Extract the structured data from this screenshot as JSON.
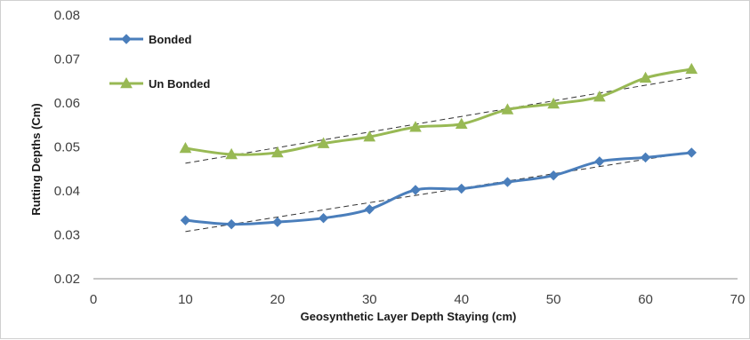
{
  "chart_data": {
    "type": "line",
    "title": "",
    "xlabel": "Geosynthetic Layer Depth  Staying (cm)",
    "ylabel": "Rutting Depths (Cm)",
    "xlim": [
      0,
      70
    ],
    "ylim": [
      0.02,
      0.08
    ],
    "x_ticks": [
      "0",
      "10",
      "20",
      "30",
      "40",
      "50",
      "60",
      "70"
    ],
    "y_ticks": [
      "0.02",
      "0.03",
      "0.04",
      "0.05",
      "0.06",
      "0.07",
      "0.08"
    ],
    "grid": false,
    "legend_position": "top-left",
    "trendlines": "dashed linear fit per series",
    "x": [
      10,
      15,
      20,
      25,
      30,
      35,
      40,
      45,
      50,
      55,
      60,
      65
    ],
    "series": [
      {
        "name": "Bonded",
        "color": "#4a7ebb",
        "marker": "diamond",
        "values": [
          0.0333,
          0.0324,
          0.0329,
          0.0338,
          0.0358,
          0.0402,
          0.0405,
          0.042,
          0.0435,
          0.0467,
          0.0476,
          0.0487
        ]
      },
      {
        "name": "Un Bonded",
        "color": "#98b954",
        "marker": "triangle",
        "values": [
          0.0497,
          0.0483,
          0.0487,
          0.0508,
          0.0523,
          0.0545,
          0.0552,
          0.0585,
          0.0598,
          0.0614,
          0.0657,
          0.0677
        ]
      }
    ]
  }
}
